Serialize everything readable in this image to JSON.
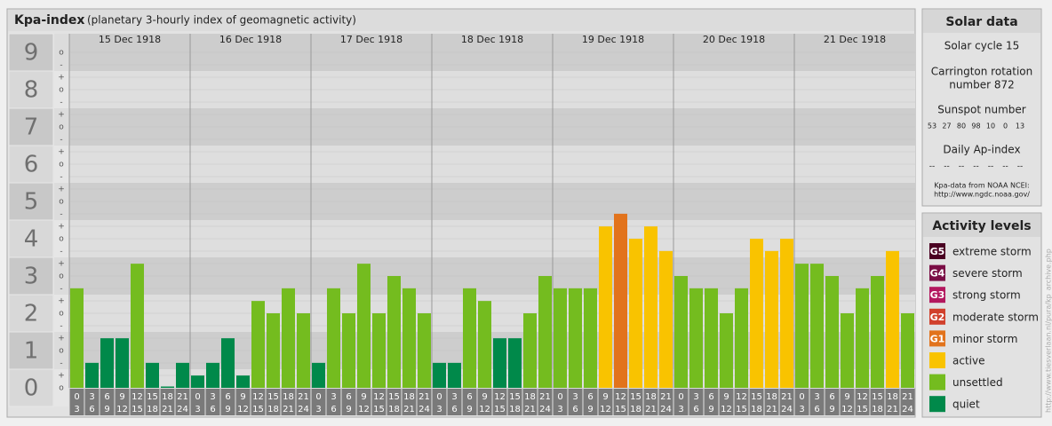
{
  "chart_data": {
    "type": "bar",
    "title": "Kpa-index",
    "subtitle": "(planetary 3-hourly index of geomagnetic activity)",
    "ylim": [
      0,
      9.5
    ],
    "yticks": [
      0,
      1,
      2,
      3,
      4,
      5,
      6,
      7,
      8,
      9
    ],
    "sublevel_labels": {
      "minus": "-",
      "zero": "o",
      "plus": "+"
    },
    "time_slots": [
      {
        "from": 0,
        "to": 3
      },
      {
        "from": 3,
        "to": 6
      },
      {
        "from": 6,
        "to": 9
      },
      {
        "from": 9,
        "to": 12
      },
      {
        "from": 12,
        "to": 15
      },
      {
        "from": 15,
        "to": 18
      },
      {
        "from": 18,
        "to": 21
      },
      {
        "from": 21,
        "to": 24
      }
    ],
    "days": [
      {
        "date": "15 Dec 1918",
        "values": [
          2.67,
          0.67,
          1.33,
          1.33,
          3.33,
          0.67,
          0,
          0.67
        ],
        "colors": [
          "#74bc1f",
          "#00894a",
          "#00894a",
          "#00894a",
          "#74bc1f",
          "#00894a",
          "#00894a",
          "#00894a"
        ]
      },
      {
        "date": "16 Dec 1918",
        "values": [
          0.33,
          0.67,
          1.33,
          0.33,
          2.33,
          2,
          2.67,
          2
        ],
        "colors": [
          "#00894a",
          "#00894a",
          "#00894a",
          "#00894a",
          "#74bc1f",
          "#74bc1f",
          "#74bc1f",
          "#74bc1f"
        ]
      },
      {
        "date": "17 Dec 1918",
        "values": [
          0.67,
          2.67,
          2,
          3.33,
          2,
          3,
          2.67,
          2
        ],
        "colors": [
          "#00894a",
          "#74bc1f",
          "#74bc1f",
          "#74bc1f",
          "#74bc1f",
          "#74bc1f",
          "#74bc1f",
          "#74bc1f"
        ]
      },
      {
        "date": "18 Dec 1918",
        "values": [
          0.67,
          0.67,
          2.67,
          2.33,
          1.33,
          1.33,
          2,
          3
        ],
        "colors": [
          "#00894a",
          "#00894a",
          "#74bc1f",
          "#74bc1f",
          "#00894a",
          "#00894a",
          "#74bc1f",
          "#74bc1f"
        ]
      },
      {
        "date": "19 Dec 1918",
        "values": [
          2.67,
          2.67,
          2.67,
          4.33,
          4.67,
          4,
          4.33,
          3.67
        ],
        "colors": [
          "#74bc1f",
          "#74bc1f",
          "#74bc1f",
          "#f9c300",
          "#e2731c",
          "#f9c300",
          "#f9c300",
          "#f9c300"
        ]
      },
      {
        "date": "20 Dec 1918",
        "values": [
          3,
          2.67,
          2.67,
          2,
          2.67,
          4,
          3.67,
          4
        ],
        "colors": [
          "#74bc1f",
          "#74bc1f",
          "#74bc1f",
          "#74bc1f",
          "#74bc1f",
          "#f9c300",
          "#f9c300",
          "#f9c300"
        ]
      },
      {
        "date": "21 Dec 1918",
        "values": [
          3.33,
          3.33,
          3,
          2,
          2.67,
          3,
          3.67,
          2
        ],
        "colors": [
          "#74bc1f",
          "#74bc1f",
          "#74bc1f",
          "#74bc1f",
          "#74bc1f",
          "#74bc1f",
          "#f9c300",
          "#74bc1f"
        ]
      }
    ]
  },
  "solar_data": {
    "title": "Solar data",
    "solar_cycle": "Solar cycle 15",
    "carrington_lines": [
      "Carrington rotation",
      "number 872"
    ],
    "sunspot_title": "Sunspot number",
    "sunspot_numbers": [
      53,
      27,
      80,
      98,
      10,
      0,
      13
    ],
    "ap_title": "Daily Ap-index",
    "ap_values": [
      "--",
      "--",
      "--",
      "--",
      "--",
      "--",
      "--"
    ],
    "source": "Kpa-data from NOAA NCEI:",
    "source_url": "http://www.ngdc.noaa.gov/"
  },
  "activity_levels": {
    "title": "Activity levels",
    "items": [
      {
        "code": "G5",
        "name": "extreme storm",
        "color": "#4a0022"
      },
      {
        "code": "G4",
        "name": "severe storm",
        "color": "#7a0d45"
      },
      {
        "code": "G3",
        "name": "strong storm",
        "color": "#b3175e"
      },
      {
        "code": "G2",
        "name": "moderate storm",
        "color": "#d1402c"
      },
      {
        "code": "G1",
        "name": "minor storm",
        "color": "#e2731c"
      },
      {
        "name": "active",
        "color": "#f9c300"
      },
      {
        "name": "unsettled",
        "color": "#74bc1f"
      },
      {
        "name": "quiet",
        "color": "#00894a"
      }
    ]
  },
  "watermark": "http://www.tiesverlaan.nl/pura/kp_archive.php"
}
